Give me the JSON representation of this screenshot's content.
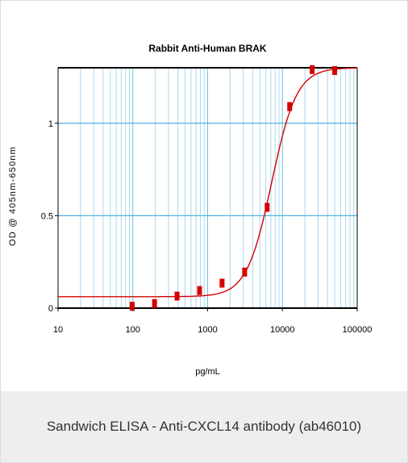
{
  "chart_data": {
    "type": "scatter",
    "title": "Rabbit Anti-Human BRAK",
    "xlabel": "pg/mL",
    "ylabel": "OD @ 405nm-650nm",
    "x_scale": "log",
    "xlim": [
      10,
      100000
    ],
    "ylim": [
      0,
      1.3
    ],
    "x_ticks": [
      10,
      100,
      1000,
      10000,
      100000
    ],
    "x_tick_labels": [
      "10",
      "100",
      "1000",
      "10000",
      "100000"
    ],
    "y_ticks": [
      0,
      0.5,
      1
    ],
    "y_tick_labels": [
      "0",
      "0.5",
      "1"
    ],
    "grid": true,
    "series": [
      {
        "points": [
          {
            "x": 98,
            "y": 0.01
          },
          {
            "x": 195,
            "y": 0.025
          },
          {
            "x": 390,
            "y": 0.065
          },
          {
            "x": 780,
            "y": 0.095
          },
          {
            "x": 1560,
            "y": 0.135
          },
          {
            "x": 3125,
            "y": 0.195
          },
          {
            "x": 6250,
            "y": 0.545
          },
          {
            "x": 12500,
            "y": 1.09
          },
          {
            "x": 25000,
            "y": 1.29
          },
          {
            "x": 50000,
            "y": 1.285
          }
        ],
        "fit_curve": "4PL",
        "color": "#d40000"
      }
    ]
  },
  "caption": "Sandwich ELISA - Anti-CXCL14 antibody (ab46010)"
}
